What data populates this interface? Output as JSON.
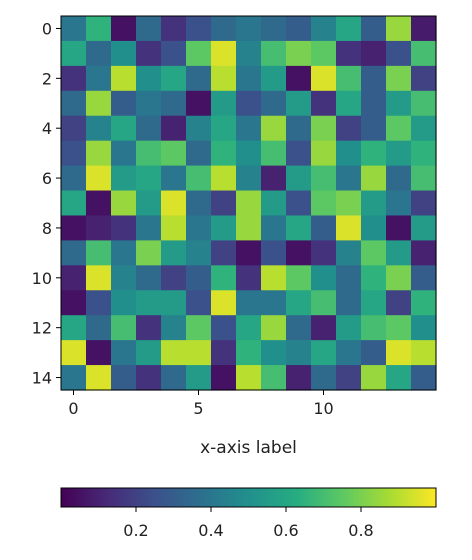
{
  "chart_data": {
    "type": "heatmap",
    "title": "",
    "xlabel": "x-axis label",
    "ylabel": "",
    "rows": 15,
    "cols": 15,
    "x_ticks": [
      0,
      5,
      10
    ],
    "x_tick_labels": [
      "0",
      "5",
      "10"
    ],
    "y_ticks": [
      0,
      2,
      4,
      6,
      8,
      10,
      12,
      14
    ],
    "y_tick_labels": [
      "0",
      "2",
      "4",
      "6",
      "8",
      "10",
      "12",
      "14"
    ],
    "colormap": "viridis",
    "colorbar": {
      "orientation": "horizontal",
      "placement": "bottom",
      "range": [
        0.0,
        1.0
      ],
      "ticks": [
        0.2,
        0.4,
        0.6,
        0.8
      ],
      "tick_labels": [
        "0.2",
        "0.4",
        "0.6",
        "0.8"
      ]
    },
    "values": [
      [
        0.4,
        0.65,
        0.05,
        0.35,
        0.15,
        0.25,
        0.35,
        0.4,
        0.35,
        0.3,
        0.45,
        0.6,
        0.3,
        0.85,
        0.08
      ],
      [
        0.6,
        0.35,
        0.5,
        0.15,
        0.25,
        0.75,
        0.95,
        0.45,
        0.7,
        0.8,
        0.75,
        0.15,
        0.1,
        0.25,
        0.7
      ],
      [
        0.15,
        0.4,
        0.9,
        0.5,
        0.6,
        0.35,
        0.9,
        0.4,
        0.55,
        0.05,
        0.95,
        0.7,
        0.3,
        0.8,
        0.2
      ],
      [
        0.35,
        0.85,
        0.3,
        0.4,
        0.35,
        0.05,
        0.55,
        0.25,
        0.35,
        0.55,
        0.15,
        0.6,
        0.3,
        0.55,
        0.7
      ],
      [
        0.2,
        0.45,
        0.6,
        0.35,
        0.1,
        0.45,
        0.6,
        0.4,
        0.85,
        0.35,
        0.8,
        0.2,
        0.3,
        0.75,
        0.55
      ],
      [
        0.25,
        0.85,
        0.4,
        0.7,
        0.75,
        0.35,
        0.65,
        0.5,
        0.7,
        0.25,
        0.85,
        0.5,
        0.65,
        0.55,
        0.65
      ],
      [
        0.35,
        0.95,
        0.55,
        0.6,
        0.4,
        0.7,
        0.9,
        0.45,
        0.1,
        0.55,
        0.7,
        0.4,
        0.85,
        0.35,
        0.7
      ],
      [
        0.6,
        0.05,
        0.85,
        0.55,
        0.95,
        0.35,
        0.2,
        0.85,
        0.55,
        0.25,
        0.75,
        0.8,
        0.55,
        0.4,
        0.2
      ],
      [
        0.05,
        0.1,
        0.15,
        0.4,
        0.9,
        0.4,
        0.55,
        0.85,
        0.4,
        0.6,
        0.3,
        0.95,
        0.5,
        0.05,
        0.55
      ],
      [
        0.35,
        0.7,
        0.4,
        0.8,
        0.55,
        0.45,
        0.2,
        0.05,
        0.25,
        0.05,
        0.15,
        0.45,
        0.75,
        0.55,
        0.1
      ],
      [
        0.1,
        0.95,
        0.45,
        0.35,
        0.2,
        0.3,
        0.65,
        0.15,
        0.9,
        0.75,
        0.5,
        0.35,
        0.65,
        0.8,
        0.3
      ],
      [
        0.05,
        0.25,
        0.5,
        0.55,
        0.55,
        0.25,
        0.95,
        0.4,
        0.4,
        0.6,
        0.7,
        0.35,
        0.6,
        0.2,
        0.65
      ],
      [
        0.6,
        0.35,
        0.7,
        0.15,
        0.45,
        0.75,
        0.25,
        0.6,
        0.85,
        0.35,
        0.1,
        0.55,
        0.7,
        0.75,
        0.5
      ],
      [
        0.95,
        0.05,
        0.4,
        0.55,
        0.9,
        0.9,
        0.15,
        0.65,
        0.5,
        0.45,
        0.6,
        0.4,
        0.3,
        0.95,
        0.9
      ],
      [
        0.4,
        0.95,
        0.3,
        0.15,
        0.35,
        0.55,
        0.05,
        0.9,
        0.7,
        0.1,
        0.35,
        0.2,
        0.85,
        0.6,
        0.3
      ]
    ]
  }
}
